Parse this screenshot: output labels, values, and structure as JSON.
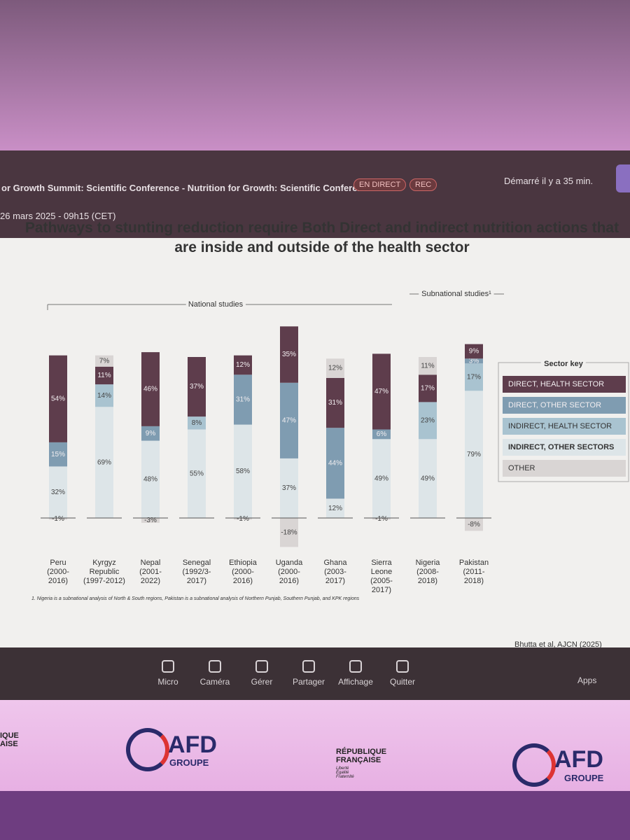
{
  "header": {
    "title": "or Growth Summit: Scientific Conference - Nutrition for Growth: Scientific Conference",
    "date": "26 mars 2025 - 09h15 (CET)",
    "live_badge": "EN DIRECT",
    "rec_badge": "REC",
    "started": "Démarré il y a 35 min."
  },
  "chart_data": {
    "type": "bar",
    "stacked": true,
    "title": "Pathways to stunting reduction require Both Direct and indirect nutrition actions that are inside and outside of the health sector",
    "group_labels": [
      "National studies",
      "Subnational studies¹"
    ],
    "categories": [
      "Peru\n(2000-\n2016)",
      "Kyrgyz\nRepublic\n(1997-2012)",
      "Nepal\n(2001-\n2022)",
      "Senegal\n(1992/3-\n2017)",
      "Ethiopia\n(2000-\n2016)",
      "Uganda\n(2000-\n2016)",
      "Ghana\n(2003-\n2017)",
      "Sierra\nLeone\n(2005-\n2017)",
      "Nigeria\n(2008-\n2018)",
      "Pakistan\n(2011-\n2018)"
    ],
    "legend_title": "Sector key",
    "series": [
      {
        "name": "DIRECT, HEALTH SECTOR",
        "color": "#5e3d4c",
        "values": [
          54,
          11,
          46,
          37,
          12,
          35,
          31,
          47,
          17,
          9
        ],
        "value_labels": [
          "54%",
          "11%",
          "46%",
          "37%",
          "12%",
          "35%",
          "31%",
          "47%",
          "17%",
          "9%"
        ]
      },
      {
        "name": "DIRECT, OTHER SECTOR",
        "color": "#7f9cb1",
        "values": [
          15,
          null,
          9,
          null,
          31,
          47,
          44,
          6,
          null,
          3
        ],
        "value_labels": [
          "15%",
          null,
          "9%",
          null,
          "31%",
          "47%",
          "44%",
          "6%",
          null,
          "3%"
        ]
      },
      {
        "name": "INDIRECT, HEALTH SECTOR",
        "color": "#a9c3d0",
        "values": [
          null,
          14,
          null,
          8,
          null,
          null,
          null,
          null,
          23,
          17
        ],
        "value_labels": [
          null,
          "14%",
          null,
          "8%",
          null,
          null,
          null,
          null,
          "23%",
          "17%"
        ]
      },
      {
        "name": "INDIRECT, OTHER SECTORS",
        "color": "#dde5e8",
        "values": [
          32,
          69,
          48,
          55,
          58,
          37,
          12,
          49,
          49,
          79
        ],
        "value_labels": [
          "32%",
          "69%",
          "48%",
          "55%",
          "58%",
          "37%",
          "12%",
          "49%",
          "49%",
          "79%"
        ]
      },
      {
        "name": "OTHER",
        "color": "#d9d5d4",
        "values": [
          -1,
          7,
          -3,
          null,
          -1,
          -18,
          12,
          -1,
          11,
          -8
        ],
        "value_labels": [
          "-1%",
          "7%",
          "-3%",
          null,
          "-1%",
          "-18%",
          "12%",
          "-1%",
          "11%",
          "-8%"
        ]
      }
    ],
    "footnote": "1. Nigeria is a subnational analysis of North & South regions, Pakistan is a subnational analysis of Northern Punjab, Southern Punjab, and KPK regions",
    "source": "Bhutta et al, AJCN (2025)"
  },
  "toolbar": [
    "Micro",
    "Caméra",
    "Gérer",
    "Partager",
    "Affichage",
    "Quitter"
  ],
  "apps": "Apps",
  "banner": {
    "left_text": "IQUE\nAISE",
    "logo_text": "AFD",
    "logo_sub": "GROUPE",
    "republic": "RÉPUBLIQUE\nFRANÇAISE",
    "motto": "Liberté\nÉgalité\nFraternité"
  }
}
